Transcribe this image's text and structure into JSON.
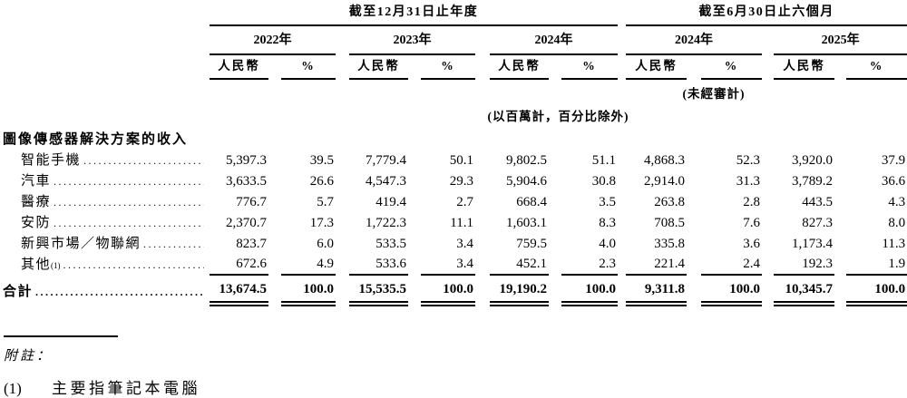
{
  "table": {
    "period_annual": "截至12月31日止年度",
    "period_interim": "截至6月30日止六個月",
    "years": [
      "2022年",
      "2023年",
      "2024年",
      "2024年",
      "2025年"
    ],
    "currency_label": "人民幣",
    "percent_label": "%",
    "unaudited_note": "(未經審計)",
    "units_note": "(以百萬計，百分比除外)",
    "section_header": "圖像傳感器解決方案的收入",
    "rows": [
      {
        "label": "智能手機",
        "sup": "",
        "indent": true,
        "values": [
          "5,397.3",
          "39.5",
          "7,779.4",
          "50.1",
          "9,802.5",
          "51.1",
          "4,868.3",
          "52.3",
          "3,920.0",
          "37.9"
        ]
      },
      {
        "label": "汽車",
        "sup": "",
        "indent": true,
        "values": [
          "3,633.5",
          "26.6",
          "4,547.3",
          "29.3",
          "5,904.6",
          "30.8",
          "2,914.0",
          "31.3",
          "3,789.2",
          "36.6"
        ]
      },
      {
        "label": "醫療",
        "sup": "",
        "indent": true,
        "values": [
          "776.7",
          "5.7",
          "419.4",
          "2.7",
          "668.4",
          "3.5",
          "263.8",
          "2.8",
          "443.5",
          "4.3"
        ]
      },
      {
        "label": "安防",
        "sup": "",
        "indent": true,
        "values": [
          "2,370.7",
          "17.3",
          "1,722.3",
          "11.1",
          "1,603.1",
          "8.3",
          "708.5",
          "7.6",
          "827.3",
          "8.0"
        ]
      },
      {
        "label": "新興市場／物聯網",
        "sup": "",
        "indent": true,
        "values": [
          "823.7",
          "6.0",
          "533.5",
          "3.4",
          "759.5",
          "4.0",
          "335.8",
          "3.6",
          "1,173.4",
          "11.3"
        ]
      },
      {
        "label": "其他",
        "sup": "(1)",
        "indent": true,
        "values": [
          "672.6",
          "4.9",
          "533.6",
          "3.4",
          "452.1",
          "2.3",
          "221.4",
          "2.4",
          "192.3",
          "1.9"
        ]
      }
    ],
    "total_row": {
      "label": "合計",
      "values": [
        "13,674.5",
        "100.0",
        "15,535.5",
        "100.0",
        "19,190.2",
        "100.0",
        "9,311.8",
        "100.0",
        "10,345.7",
        "100.0"
      ]
    }
  },
  "footnotes": {
    "heading": "附註：",
    "items": [
      {
        "marker": "(1)",
        "text": "主要指筆記本電腦"
      }
    ]
  }
}
